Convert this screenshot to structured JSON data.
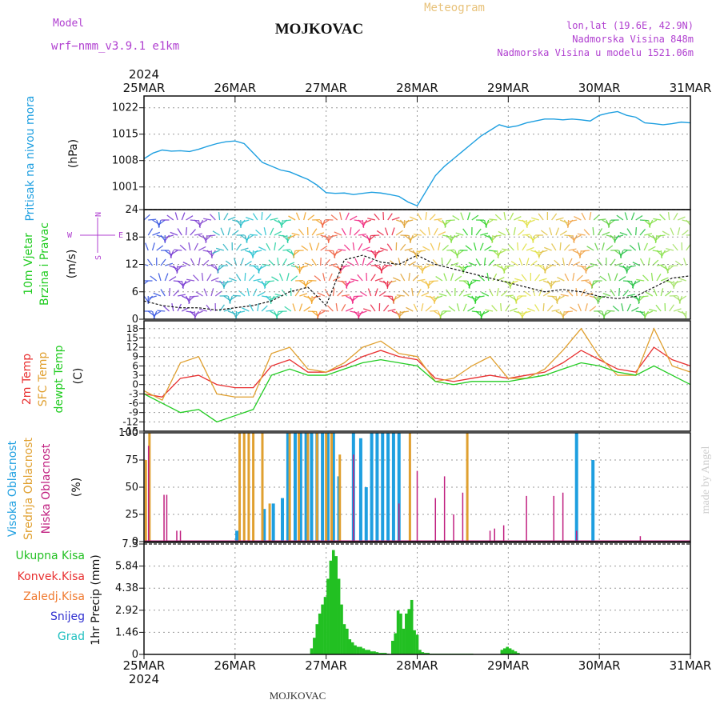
{
  "header": {
    "model_label": "Model",
    "model_name": "wrf−nmm_v3.9.1  e1km",
    "station": "MOJKOVAC",
    "meteogram": "Meteogram",
    "lonlat": "lon,lat (19.6E, 42.9N)",
    "altitude": "Nadmorska Visina 848m",
    "model_altitude": "Nadmorska Visina u modelu 1521.06m",
    "year_top": "2024",
    "year_bottom": "2024",
    "footer_station": "MOJKOVAC",
    "credit": "made by Angel"
  },
  "colors": {
    "pressure": "#1e9fe0",
    "temp2m": "#e83030",
    "sfctemp": "#e0a030",
    "dewpt": "#22cc22",
    "high_cloud": "#1e9fe0",
    "mid_cloud": "#e0a030",
    "low_cloud": "#c02080",
    "total_precip": "#22c022",
    "conv_precip": "#e83030",
    "frozen_precip": "#f07a30",
    "snow": "#3030d0",
    "graupel": "#20c0c0",
    "axis_label_purple": "#b040d0"
  },
  "chart_data": [
    {
      "id": "pressure",
      "type": "line",
      "ylabel_lines": [
        "Pritisak na nivou mora",
        "(hPa)"
      ],
      "x_labels": [
        "25MAR",
        "26MAR",
        "27MAR",
        "28MAR",
        "29MAR",
        "30MAR",
        "31MAR"
      ],
      "ylim": [
        995,
        1023
      ],
      "yticks": [
        1001,
        1008,
        1015,
        1022
      ],
      "grid": true,
      "x_days": [
        0,
        0.1,
        0.2,
        0.3,
        0.4,
        0.5,
        0.6,
        0.7,
        0.8,
        0.9,
        1.0,
        1.1,
        1.2,
        1.3,
        1.4,
        1.5,
        1.6,
        1.7,
        1.8,
        1.9,
        2.0,
        2.1,
        2.2,
        2.3,
        2.4,
        2.5,
        2.6,
        2.7,
        2.8,
        2.9,
        3.0,
        3.1,
        3.2,
        3.3,
        3.4,
        3.5,
        3.6,
        3.7,
        3.8,
        3.9,
        4.0,
        4.1,
        4.2,
        4.3,
        4.4,
        4.5,
        4.6,
        4.7,
        4.8,
        4.9,
        5.0,
        5.1,
        5.2,
        5.3,
        5.4,
        5.5,
        5.6,
        5.7,
        5.8,
        5.9,
        6.0
      ],
      "values": [
        1008.5,
        1010,
        1010.8,
        1010.5,
        1010.6,
        1010.4,
        1011,
        1011.8,
        1012.5,
        1013,
        1013.2,
        1012.5,
        1010,
        1007.5,
        1006.5,
        1005.5,
        1005,
        1004,
        1003,
        1001.5,
        999.5,
        999.3,
        999.4,
        999,
        999.3,
        999.6,
        999.4,
        999,
        998.5,
        997,
        996,
        1000,
        1004,
        1006.5,
        1008.5,
        1010.5,
        1012.5,
        1014.5,
        1016,
        1017.5,
        1016.8,
        1017.2,
        1018,
        1018.5,
        1019,
        1019,
        1018.8,
        1019,
        1018.8,
        1018.5,
        1020,
        1020.6,
        1021,
        1020,
        1019.5,
        1018,
        1017.8,
        1017.5,
        1017.8,
        1018.2,
        1018
      ]
    },
    {
      "id": "wind",
      "type": "line",
      "ylabel_lines": [
        "10m Vjetar",
        "Brzina i Pravac",
        "(m/s)"
      ],
      "compass": [
        "N",
        "W",
        "E",
        "S"
      ],
      "ylim": [
        0,
        24
      ],
      "yticks": [
        0,
        6,
        12,
        18,
        24
      ],
      "grid": true,
      "x_days": [
        0,
        0.2,
        0.4,
        0.6,
        0.8,
        1.0,
        1.2,
        1.4,
        1.6,
        1.8,
        2.0,
        2.2,
        2.4,
        2.6,
        2.8,
        3.0,
        3.2,
        3.4,
        3.6,
        3.8,
        4.0,
        4.2,
        4.4,
        4.6,
        4.8,
        5.0,
        5.2,
        5.4,
        5.6,
        5.8,
        6.0
      ],
      "values": [
        4,
        3,
        2.5,
        2.5,
        2,
        2.5,
        3,
        4,
        6,
        7,
        3,
        13,
        14,
        12.5,
        12,
        14,
        12,
        11,
        10,
        9,
        8,
        7,
        6,
        6.5,
        6,
        5,
        4.5,
        5,
        7,
        9,
        9.5
      ]
    },
    {
      "id": "temperature",
      "type": "line",
      "ylabel_lines": [
        "2m Temp",
        "SFC Temp",
        "dewpt Temp",
        "(C)"
      ],
      "ylim": [
        -15,
        20
      ],
      "yticks": [
        -15,
        -12,
        -9,
        -6,
        -3,
        0,
        3,
        6,
        9,
        12,
        15,
        18
      ],
      "grid": true,
      "x_days": [
        0,
        0.2,
        0.4,
        0.6,
        0.8,
        1.0,
        1.2,
        1.4,
        1.6,
        1.8,
        2.0,
        2.2,
        2.4,
        2.6,
        2.8,
        3.0,
        3.2,
        3.4,
        3.6,
        3.8,
        4.0,
        4.2,
        4.4,
        4.6,
        4.8,
        5.0,
        5.2,
        5.4,
        5.6,
        5.8,
        6.0
      ],
      "series": [
        {
          "name": "2m Temp",
          "color_key": "temp2m",
          "values": [
            -3,
            -4,
            2,
            3,
            0,
            -1,
            -1,
            6,
            8,
            4,
            4,
            6,
            9,
            11,
            9,
            8,
            2,
            1,
            2,
            3,
            2,
            3,
            4,
            7,
            11,
            8,
            5,
            4,
            12,
            8,
            6
          ]
        },
        {
          "name": "SFC Temp",
          "color_key": "sfctemp",
          "values": [
            -2,
            -5,
            7,
            9,
            -3,
            -4,
            -4,
            10,
            12,
            5,
            4,
            7,
            12,
            14,
            10,
            9,
            1,
            2,
            6,
            9,
            2,
            2,
            5,
            11,
            18,
            9,
            3,
            3,
            18,
            6,
            4
          ]
        },
        {
          "name": "dewpt Temp",
          "color_key": "dewpt",
          "values": [
            -3,
            -6,
            -9,
            -8,
            -12,
            -10,
            -8,
            3,
            5,
            3,
            3,
            5,
            7,
            8,
            7,
            6,
            1,
            0,
            1,
            1,
            1,
            2,
            3,
            5,
            7,
            6,
            4,
            3,
            6,
            3,
            0
          ]
        }
      ]
    },
    {
      "id": "cloud",
      "type": "bar",
      "ylabel_lines": [
        "Visoka Oblacnost",
        "Srednja Oblacnost",
        "Niska Oblacnost",
        "(%)"
      ],
      "ylim": [
        0,
        100
      ],
      "yticks": [
        0,
        25,
        50,
        75,
        100
      ],
      "grid": true,
      "series": [
        {
          "name": "Visoka Oblacnost",
          "color_key": "high_cloud",
          "x_days": [
            1.02,
            1.32,
            1.42,
            1.52,
            1.58,
            1.66,
            1.72,
            1.78,
            1.84,
            1.9,
            1.96,
            2.02,
            2.08,
            2.14,
            2.3,
            2.38,
            2.44,
            2.5,
            2.56,
            2.62,
            2.68,
            2.74,
            2.8,
            4.75,
            4.93
          ],
          "values": [
            10,
            30,
            35,
            40,
            100,
            100,
            100,
            100,
            100,
            100,
            100,
            100,
            100,
            60,
            100,
            95,
            50,
            100,
            100,
            100,
            100,
            100,
            100,
            100,
            75
          ]
        },
        {
          "name": "Srednja Oblacnost",
          "color_key": "mid_cloud",
          "x_days": [
            0.02,
            0.06,
            1.05,
            1.1,
            1.15,
            1.2,
            1.3,
            1.38,
            1.6,
            1.7,
            1.8,
            1.9,
            2.0,
            2.06,
            2.15,
            2.92,
            3.55
          ],
          "values": [
            75,
            100,
            100,
            100,
            100,
            100,
            100,
            35,
            100,
            100,
            100,
            100,
            100,
            100,
            80,
            100,
            100
          ]
        },
        {
          "name": "Niska Oblacnost",
          "color_key": "low_cloud",
          "x_days": [
            0.05,
            0.22,
            0.25,
            0.36,
            0.4,
            2.3,
            2.8,
            3.0,
            3.2,
            3.3,
            3.4,
            3.5,
            3.8,
            3.85,
            3.95,
            4.2,
            4.5,
            4.6,
            4.75,
            5.45
          ],
          "values": [
            88,
            43,
            43,
            10,
            10,
            80,
            35,
            65,
            40,
            60,
            25,
            45,
            10,
            12,
            15,
            42,
            42,
            45,
            10,
            5
          ]
        }
      ]
    },
    {
      "id": "precip",
      "type": "bar",
      "ylabel_lines": [
        "1hr Precip (mm)"
      ],
      "legend": [
        "Ukupna Kisa",
        "Konvek.Kisa",
        "Zaledj.Kisa",
        "Snijeg",
        "Grad"
      ],
      "x_labels": [
        "25MAR",
        "26MAR",
        "27MAR",
        "28MAR",
        "29MAR",
        "30MAR",
        "31MAR"
      ],
      "ylim": [
        0,
        7.3
      ],
      "yticks": [
        0,
        1.46,
        2.92,
        4.38,
        5.84,
        7.3
      ],
      "grid": true,
      "x_days": [
        1.84,
        1.87,
        1.9,
        1.93,
        1.96,
        1.99,
        2.02,
        2.05,
        2.08,
        2.11,
        2.14,
        2.17,
        2.2,
        2.23,
        2.26,
        2.29,
        2.32,
        2.35,
        2.38,
        2.41,
        2.44,
        2.47,
        2.5,
        2.53,
        2.56,
        2.59,
        2.62,
        2.65,
        2.68,
        2.73,
        2.76,
        2.79,
        2.82,
        2.85,
        2.88,
        2.91,
        2.94,
        2.97,
        3.0,
        3.03,
        3.06,
        3.09,
        3.12,
        3.15,
        3.18,
        3.21,
        3.24,
        3.27,
        3.3,
        3.33,
        3.36,
        3.39,
        3.42,
        3.45,
        3.48,
        3.51,
        3.54,
        3.57,
        3.6,
        3.93,
        3.96,
        3.99,
        4.02,
        4.05,
        4.08,
        4.11
      ],
      "values": [
        0.4,
        1.1,
        2.0,
        2.7,
        3.3,
        3.8,
        5.0,
        6.2,
        6.9,
        6.5,
        5.0,
        3.3,
        2.0,
        1.7,
        1.0,
        0.8,
        0.6,
        0.5,
        0.5,
        0.4,
        0.3,
        0.3,
        0.2,
        0.2,
        0.15,
        0.1,
        0.1,
        0.1,
        0.05,
        0.9,
        1.4,
        2.9,
        2.7,
        1.7,
        2.7,
        3.0,
        3.6,
        1.6,
        1.3,
        0.3,
        0.15,
        0.1,
        0.1,
        0.05,
        0.05,
        0.05,
        0.05,
        0.05,
        0.05,
        0.05,
        0.05,
        0.05,
        0.05,
        0.05,
        0.05,
        0.05,
        0.05,
        0.05,
        0.05,
        0.3,
        0.4,
        0.5,
        0.4,
        0.3,
        0.2,
        0.1
      ]
    }
  ]
}
